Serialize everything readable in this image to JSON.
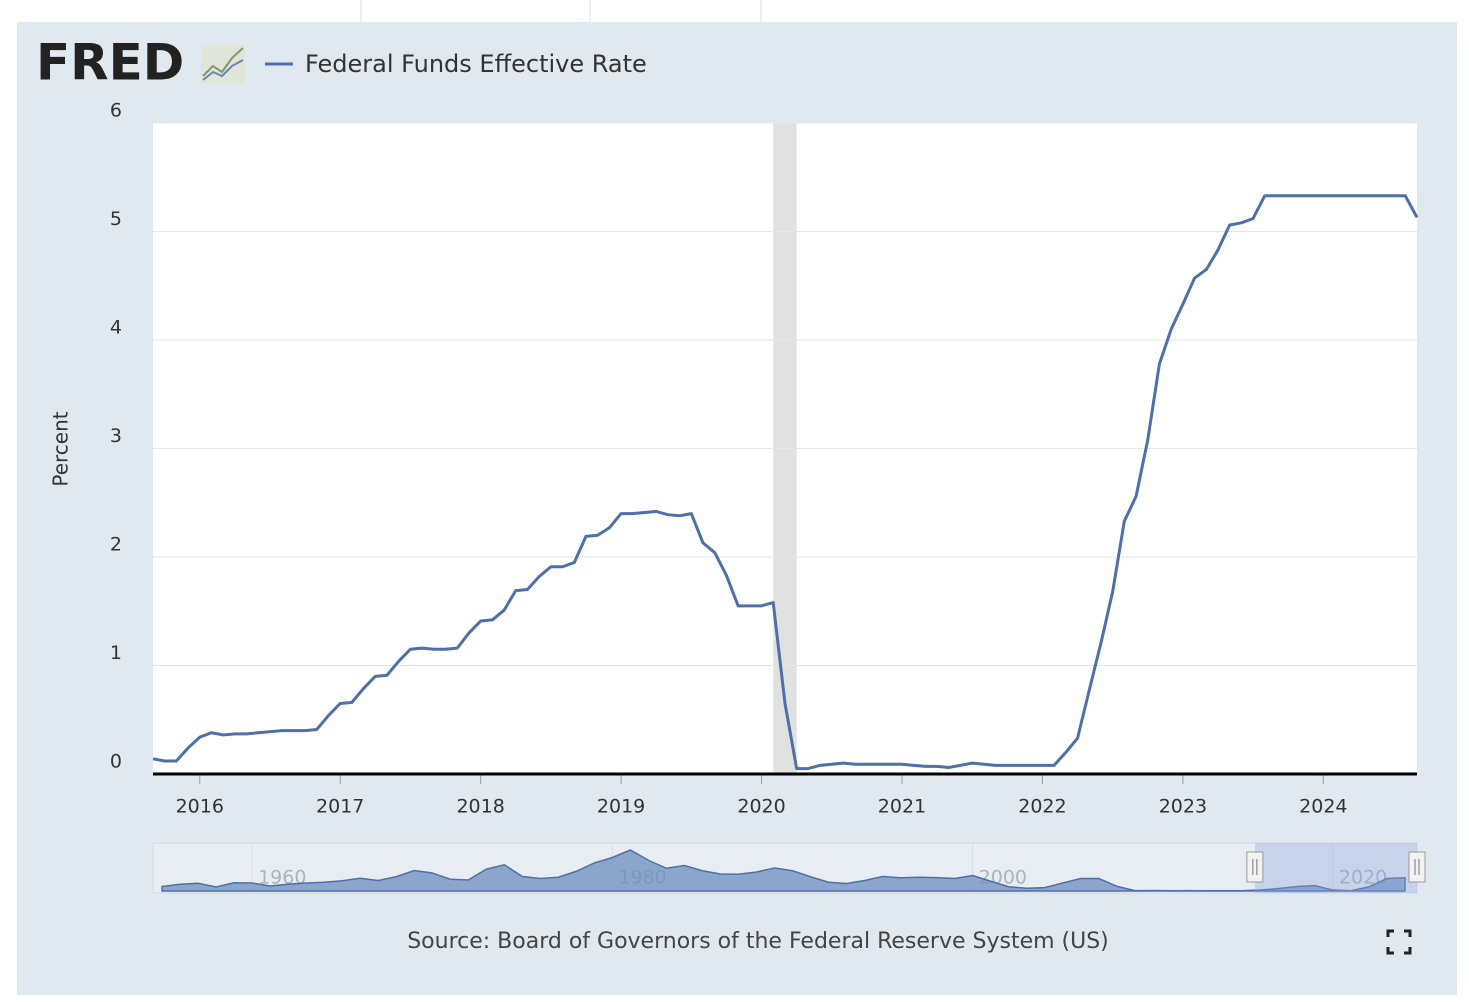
{
  "chart_data": {
    "type": "line",
    "logo": "FRED",
    "ylabel": "Percent",
    "source": "Source: Board of Governors of the Federal Reserve System (US)",
    "x": [
      2015.667,
      2015.75,
      2015.833,
      2015.917,
      2016,
      2016.083,
      2016.167,
      2016.25,
      2016.333,
      2016.417,
      2016.5,
      2016.583,
      2016.667,
      2016.75,
      2016.833,
      2016.917,
      2017,
      2017.083,
      2017.167,
      2017.25,
      2017.333,
      2017.417,
      2017.5,
      2017.583,
      2017.667,
      2017.75,
      2017.833,
      2017.917,
      2018,
      2018.083,
      2018.167,
      2018.25,
      2018.333,
      2018.417,
      2018.5,
      2018.583,
      2018.667,
      2018.75,
      2018.833,
      2018.917,
      2019,
      2019.083,
      2019.167,
      2019.25,
      2019.333,
      2019.417,
      2019.5,
      2019.583,
      2019.667,
      2019.75,
      2019.833,
      2019.917,
      2020,
      2020.083,
      2020.167,
      2020.25,
      2020.333,
      2020.417,
      2020.5,
      2020.583,
      2020.667,
      2020.75,
      2020.833,
      2020.917,
      2021,
      2021.083,
      2021.167,
      2021.25,
      2021.333,
      2021.417,
      2021.5,
      2021.583,
      2021.667,
      2021.75,
      2021.833,
      2021.917,
      2022,
      2022.083,
      2022.167,
      2022.25,
      2022.333,
      2022.417,
      2022.5,
      2022.583,
      2022.667,
      2022.75,
      2022.833,
      2022.917,
      2023,
      2023.083,
      2023.167,
      2023.25,
      2023.333,
      2023.417,
      2023.5,
      2023.583,
      2023.667,
      2023.75,
      2023.833,
      2023.917,
      2024,
      2024.083,
      2024.167,
      2024.25,
      2024.333,
      2024.417,
      2024.5,
      2024.583,
      2024.667
    ],
    "series": [
      {
        "name": "Federal Funds Effective Rate",
        "color": "#4e6fa8",
        "values": [
          0.14,
          0.12,
          0.12,
          0.24,
          0.34,
          0.38,
          0.36,
          0.37,
          0.37,
          0.38,
          0.39,
          0.4,
          0.4,
          0.4,
          0.41,
          0.54,
          0.65,
          0.66,
          0.79,
          0.9,
          0.91,
          1.04,
          1.15,
          1.16,
          1.15,
          1.15,
          1.16,
          1.3,
          1.41,
          1.42,
          1.51,
          1.69,
          1.7,
          1.82,
          1.91,
          1.91,
          1.95,
          2.19,
          2.2,
          2.27,
          2.4,
          2.4,
          2.41,
          2.42,
          2.39,
          2.38,
          2.4,
          2.13,
          2.04,
          1.83,
          1.55,
          1.55,
          1.55,
          1.58,
          0.65,
          0.05,
          0.05,
          0.08,
          0.09,
          0.1,
          0.09,
          0.09,
          0.09,
          0.09,
          0.09,
          0.08,
          0.07,
          0.07,
          0.06,
          0.08,
          0.1,
          0.09,
          0.08,
          0.08,
          0.08,
          0.08,
          0.08,
          0.08,
          0.2,
          0.33,
          0.77,
          1.21,
          1.68,
          2.33,
          2.56,
          3.08,
          3.78,
          4.1,
          4.33,
          4.57,
          4.65,
          4.83,
          5.06,
          5.08,
          5.12,
          5.33,
          5.33,
          5.33,
          5.33,
          5.33,
          5.33,
          5.33,
          5.33,
          5.33,
          5.33,
          5.33,
          5.33,
          5.33,
          5.13
        ]
      }
    ],
    "xlim": [
      2015.667,
      2024.667
    ],
    "xticks": [
      2016,
      2017,
      2018,
      2019,
      2020,
      2021,
      2022,
      2023,
      2024
    ],
    "ylim": [
      0,
      6
    ],
    "yticks": [
      0,
      1,
      2,
      3,
      4,
      5,
      6
    ],
    "grid": true,
    "recession": [
      2020.083,
      2020.25
    ],
    "navigator": {
      "x": [
        1955,
        1956,
        1957,
        1958,
        1959,
        1960,
        1961,
        1962,
        1963,
        1964,
        1965,
        1966,
        1967,
        1968,
        1969,
        1970,
        1971,
        1972,
        1973,
        1974,
        1975,
        1976,
        1977,
        1978,
        1979,
        1980,
        1981,
        1982,
        1983,
        1984,
        1985,
        1986,
        1987,
        1988,
        1989,
        1990,
        1991,
        1992,
        1993,
        1994,
        1995,
        1996,
        1997,
        1998,
        1999,
        2000,
        2001,
        2002,
        2003,
        2004,
        2005,
        2006,
        2007,
        2008,
        2009,
        2010,
        2011,
        2012,
        2013,
        2014,
        2015,
        2016,
        2017,
        2018,
        2019,
        2020,
        2021,
        2022,
        2023,
        2024
      ],
      "values": [
        1.8,
        2.7,
        3.1,
        1.6,
        3.3,
        3.2,
        2.0,
        2.7,
        3.2,
        3.5,
        4.1,
        5.1,
        4.2,
        5.7,
        8.2,
        7.2,
        4.7,
        4.4,
        8.7,
        10.5,
        5.8,
        5.0,
        5.5,
        7.9,
        11.2,
        13.4,
        16.4,
        12.3,
        9.1,
        10.2,
        8.1,
        6.8,
        6.7,
        7.6,
        9.2,
        8.1,
        5.7,
        3.5,
        3.0,
        4.2,
        5.8,
        5.3,
        5.5,
        5.35,
        5.0,
        6.2,
        3.9,
        1.7,
        1.1,
        1.35,
        3.2,
        5.0,
        5.0,
        1.9,
        0.16,
        0.18,
        0.1,
        0.14,
        0.11,
        0.09,
        0.13,
        0.4,
        1.0,
        1.8,
        2.16,
        0.38,
        0.08,
        1.68,
        5.0,
        5.3
      ],
      "xlim": [
        1954.5,
        2024.667
      ],
      "ylim": [
        0,
        20
      ],
      "xticks": [
        1960,
        1980,
        2000,
        2020
      ]
    }
  }
}
